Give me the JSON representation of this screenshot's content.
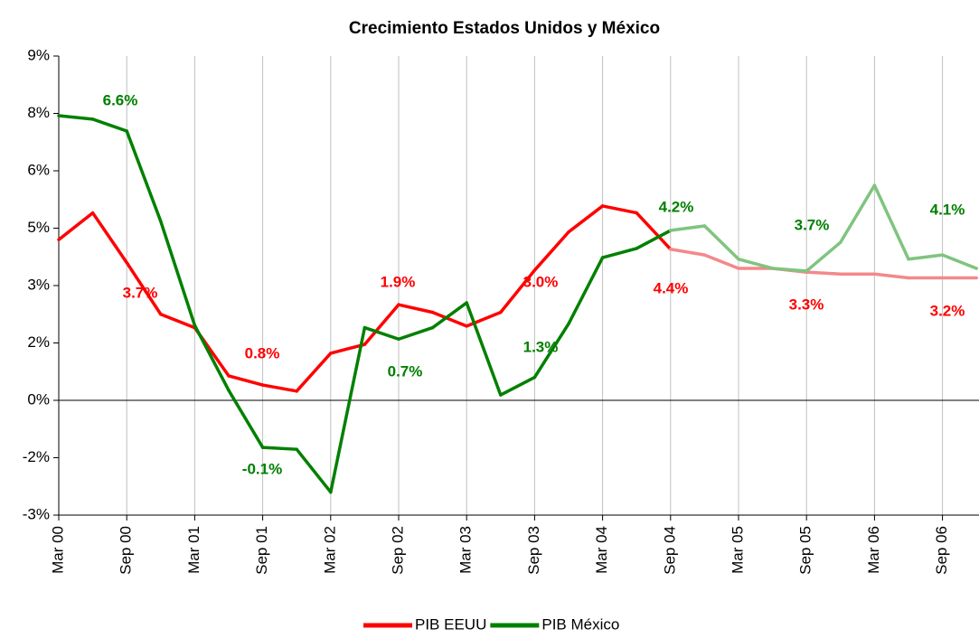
{
  "chart_data": {
    "type": "line",
    "title": "Crecimiento Estados Unidos y México",
    "categories": [
      "Mar 00",
      null,
      "Sep 00",
      null,
      "Mar 01",
      null,
      "Sep 01",
      null,
      "Mar 02",
      null,
      "Sep 02",
      null,
      "Mar 03",
      null,
      "Sep 03",
      null,
      "Mar 04",
      null,
      "Sep 04",
      null,
      "Mar 05",
      null,
      "Sep 05",
      null,
      "Mar 06",
      null,
      "Sep 06",
      null
    ],
    "ylim": [
      -3,
      9
    ],
    "yticks": [
      {
        "value": -3,
        "label": "-3%"
      },
      {
        "value": -1.5,
        "label": "-2%"
      },
      {
        "value": 0,
        "label": "0%"
      },
      {
        "value": 1.5,
        "label": "2%"
      },
      {
        "value": 3,
        "label": "3%"
      },
      {
        "value": 4.5,
        "label": "5%"
      },
      {
        "value": 6,
        "label": "6%"
      },
      {
        "value": 7.5,
        "label": "8%"
      },
      {
        "value": 9,
        "label": "9%"
      }
    ],
    "grid": true,
    "legend": "bottom",
    "series": [
      {
        "name": "PIB EEUU",
        "color": "#ff0000",
        "values": [
          4.2,
          4.9,
          3.6,
          2.25,
          1.9,
          0.64,
          0.4,
          0.24,
          1.23,
          1.46,
          2.5,
          2.3,
          1.94,
          2.3,
          3.4,
          4.4,
          5.08,
          4.9,
          3.95,
          3.8,
          3.45,
          3.45,
          3.35,
          3.3,
          3.3,
          3.2,
          3.2,
          3.2
        ],
        "point_colors": [
          "#ff0000",
          "#ff0000",
          "#ff0000",
          "#ff0000",
          "#ff0000",
          "#ff0000",
          "#ff0000",
          "#ff0000",
          "#ff0000",
          "#ff0000",
          "#ff0000",
          "#ff0000",
          "#ff0000",
          "#ff0000",
          "#ff0000",
          "#ff0000",
          "#ff0000",
          "#ff0000",
          "#ff0000",
          "#f4888a",
          "#f4888a",
          "#f4888a",
          "#f4888a",
          "#f4888a",
          "#f4888a",
          "#f4888a",
          "#f4888a",
          "#f4888a"
        ],
        "annotations": [
          "3.7%",
          "0.8%",
          "1.9%",
          "3.0%",
          "4.4%",
          "3.3%",
          "3.2%"
        ]
      },
      {
        "name": "PIB México",
        "color": "#008000",
        "values": [
          7.44,
          7.35,
          7.04,
          4.68,
          1.96,
          0.26,
          -1.23,
          -1.28,
          -2.4,
          1.9,
          1.6,
          1.9,
          2.55,
          0.14,
          0.6,
          2.0,
          3.73,
          3.97,
          4.44,
          4.56,
          3.69,
          3.45,
          3.38,
          4.13,
          5.62,
          3.69,
          3.8,
          3.45
        ],
        "point_colors": [
          "#008000",
          "#008000",
          "#008000",
          "#008000",
          "#008000",
          "#008000",
          "#008000",
          "#008000",
          "#008000",
          "#008000",
          "#008000",
          "#008000",
          "#008000",
          "#008000",
          "#008000",
          "#008000",
          "#008000",
          "#008000",
          "#008000",
          "#7fc47f",
          "#7fc47f",
          "#7fc47f",
          "#7fc47f",
          "#7fc47f",
          "#7fc47f",
          "#7fc47f",
          "#7fc47f",
          "#7fc47f"
        ],
        "annotations": [
          "6.6%",
          "-0.1%",
          "0.7%",
          "1.3%",
          "4.2%",
          "3.7%",
          "4.1%"
        ]
      }
    ]
  }
}
